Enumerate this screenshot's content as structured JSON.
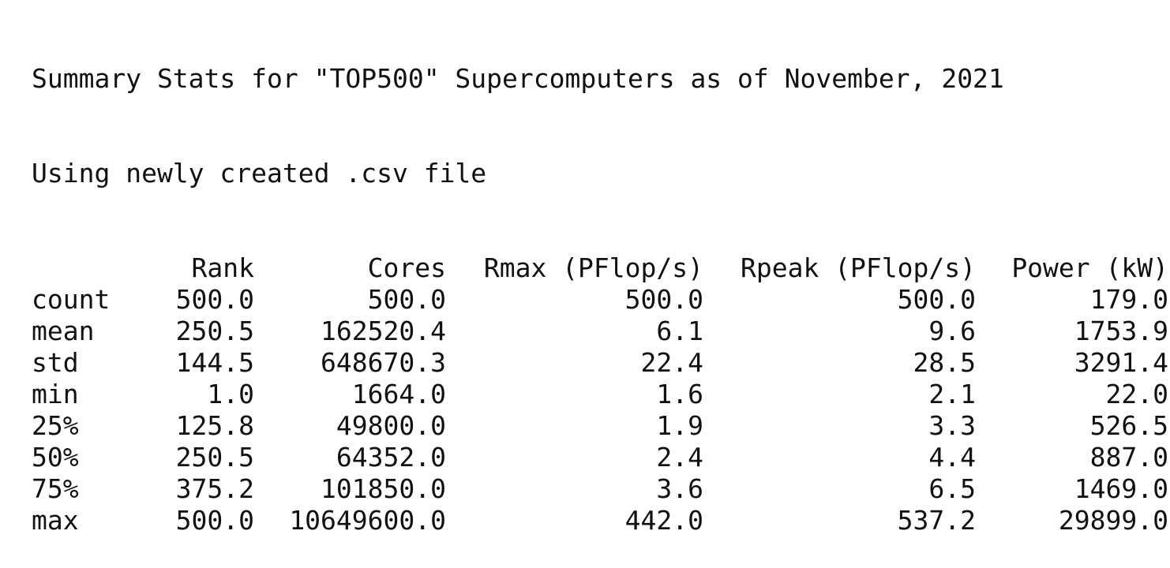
{
  "output": {
    "title": "Summary Stats for \"TOP500\" Supercomputers as of November, 2021",
    "subtitle": "Using newly created .csv file"
  },
  "table": {
    "columns": [
      "Rank",
      "Cores",
      "Rmax (PFlop/s)",
      "Rpeak (PFlop/s)",
      "Power (kW)"
    ],
    "rows": [
      {
        "label": "count",
        "values": [
          "500.0",
          "500.0",
          "500.0",
          "500.0",
          "179.0"
        ]
      },
      {
        "label": "mean",
        "values": [
          "250.5",
          "162520.4",
          "6.1",
          "9.6",
          "1753.9"
        ]
      },
      {
        "label": "std",
        "values": [
          "144.5",
          "648670.3",
          "22.4",
          "28.5",
          "3291.4"
        ]
      },
      {
        "label": "min",
        "values": [
          "1.0",
          "1664.0",
          "1.6",
          "2.1",
          "22.0"
        ]
      },
      {
        "label": "25%",
        "values": [
          "125.8",
          "49800.0",
          "1.9",
          "3.3",
          "526.5"
        ]
      },
      {
        "label": "50%",
        "values": [
          "250.5",
          "64352.0",
          "2.4",
          "4.4",
          "887.0"
        ]
      },
      {
        "label": "75%",
        "values": [
          "375.2",
          "101850.0",
          "3.6",
          "6.5",
          "1469.0"
        ]
      },
      {
        "label": "max",
        "values": [
          "500.0",
          "10649600.0",
          "442.0",
          "537.2",
          "29899.0"
        ]
      }
    ]
  }
}
